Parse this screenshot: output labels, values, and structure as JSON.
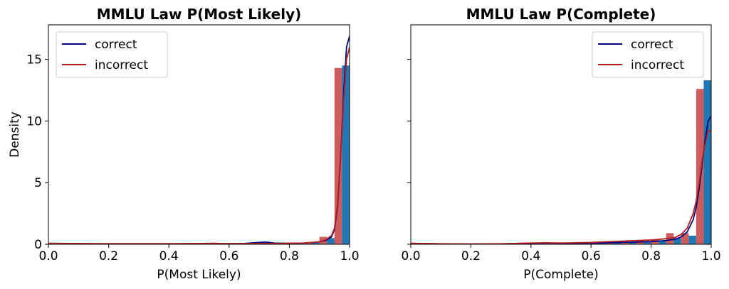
{
  "chart_data": [
    {
      "type": "bar",
      "title": "MMLU Law P(Most Likely)",
      "xlabel": "P(Most Likely)",
      "ylabel": "Density",
      "xlim": [
        0,
        1
      ],
      "ylim": [
        0,
        17.8
      ],
      "xticks": [
        "0.0",
        "0.2",
        "0.4",
        "0.6",
        "0.8",
        "1.0"
      ],
      "yticks": [
        "0",
        "5",
        "10",
        "15"
      ],
      "grid": false,
      "legend_position": "top-left",
      "bin_width": 0.05,
      "series": [
        {
          "name": "correct",
          "color": "#000080",
          "hist_color": "#1f77b4",
          "hist": [
            [
              0.05,
              0.05
            ],
            [
              0.1,
              0.03
            ],
            [
              0.15,
              0.03
            ],
            [
              0.2,
              0.03
            ],
            [
              0.25,
              0.03
            ],
            [
              0.3,
              0.03
            ],
            [
              0.35,
              0.03
            ],
            [
              0.4,
              0.03
            ],
            [
              0.45,
              0.03
            ],
            [
              0.5,
              0.03
            ],
            [
              0.55,
              0.04
            ],
            [
              0.6,
              0.04
            ],
            [
              0.65,
              0.05
            ],
            [
              0.7,
              0.1
            ],
            [
              0.75,
              0.1
            ],
            [
              0.8,
              0.08
            ],
            [
              0.85,
              0.1
            ],
            [
              0.9,
              0.2
            ],
            [
              0.95,
              0.5
            ],
            [
              1.0,
              14.5
            ]
          ],
          "kde": [
            [
              0,
              0.05
            ],
            [
              0.1,
              0.04
            ],
            [
              0.2,
              0.03
            ],
            [
              0.3,
              0.03
            ],
            [
              0.4,
              0.03
            ],
            [
              0.5,
              0.04
            ],
            [
              0.55,
              0.05
            ],
            [
              0.6,
              0.04
            ],
            [
              0.65,
              0.06
            ],
            [
              0.7,
              0.15
            ],
            [
              0.72,
              0.18
            ],
            [
              0.75,
              0.1
            ],
            [
              0.8,
              0.08
            ],
            [
              0.85,
              0.1
            ],
            [
              0.88,
              0.15
            ],
            [
              0.9,
              0.2
            ],
            [
              0.92,
              0.3
            ],
            [
              0.94,
              0.6
            ],
            [
              0.95,
              1.2
            ],
            [
              0.96,
              3
            ],
            [
              0.97,
              7
            ],
            [
              0.98,
              12
            ],
            [
              0.99,
              16
            ],
            [
              1.0,
              16.9
            ]
          ]
        },
        {
          "name": "incorrect",
          "color": "#b22222",
          "hist_color": "#cd5c5c",
          "hist": [
            [
              0.05,
              0.08
            ],
            [
              0.1,
              0.05
            ],
            [
              0.15,
              0.04
            ],
            [
              0.2,
              0.04
            ],
            [
              0.25,
              0.05
            ],
            [
              0.3,
              0.04
            ],
            [
              0.35,
              0.04
            ],
            [
              0.4,
              0.05
            ],
            [
              0.45,
              0.05
            ],
            [
              0.5,
              0.05
            ],
            [
              0.55,
              0.08
            ],
            [
              0.6,
              0.04
            ],
            [
              0.65,
              0.05
            ],
            [
              0.7,
              0.06
            ],
            [
              0.75,
              0.06
            ],
            [
              0.8,
              0.08
            ],
            [
              0.85,
              0.1
            ],
            [
              0.9,
              0.15
            ],
            [
              0.95,
              0.6
            ],
            [
              1.0,
              14.3
            ]
          ],
          "kde": [
            [
              0,
              0.08
            ],
            [
              0.1,
              0.06
            ],
            [
              0.2,
              0.05
            ],
            [
              0.3,
              0.05
            ],
            [
              0.4,
              0.05
            ],
            [
              0.5,
              0.06
            ],
            [
              0.55,
              0.08
            ],
            [
              0.6,
              0.05
            ],
            [
              0.7,
              0.06
            ],
            [
              0.8,
              0.08
            ],
            [
              0.85,
              0.1
            ],
            [
              0.9,
              0.2
            ],
            [
              0.92,
              0.35
            ],
            [
              0.94,
              0.7
            ],
            [
              0.95,
              1.3
            ],
            [
              0.96,
              3.2
            ],
            [
              0.97,
              7
            ],
            [
              0.98,
              11.5
            ],
            [
              0.99,
              15
            ],
            [
              1.0,
              16.0
            ]
          ]
        }
      ]
    },
    {
      "type": "bar",
      "title": "MMLU Law P(Complete)",
      "xlabel": "P(Complete)",
      "ylabel": "",
      "xlim": [
        0,
        1
      ],
      "ylim": [
        0,
        17.8
      ],
      "xticks": [
        "0.0",
        "0.2",
        "0.4",
        "0.6",
        "0.8",
        "1.0"
      ],
      "yticks": [],
      "grid": false,
      "legend_position": "top-right",
      "bin_width": 0.05,
      "series": [
        {
          "name": "correct",
          "color": "#000080",
          "hist_color": "#1f77b4",
          "hist": [
            [
              0.05,
              0.05
            ],
            [
              0.1,
              0.03
            ],
            [
              0.15,
              0.02
            ],
            [
              0.2,
              0.02
            ],
            [
              0.25,
              0.02
            ],
            [
              0.3,
              0.02
            ],
            [
              0.35,
              0.03
            ],
            [
              0.4,
              0.05
            ],
            [
              0.45,
              0.06
            ],
            [
              0.5,
              0.05
            ],
            [
              0.55,
              0.05
            ],
            [
              0.6,
              0.1
            ],
            [
              0.65,
              0.1
            ],
            [
              0.7,
              0.12
            ],
            [
              0.75,
              0.15
            ],
            [
              0.8,
              0.2
            ],
            [
              0.85,
              0.3
            ],
            [
              0.9,
              0.5
            ],
            [
              0.95,
              0.7
            ],
            [
              1.0,
              13.3
            ]
          ],
          "kde": [
            [
              0,
              0.05
            ],
            [
              0.05,
              0.04
            ],
            [
              0.1,
              0.03
            ],
            [
              0.2,
              0.02
            ],
            [
              0.3,
              0.03
            ],
            [
              0.4,
              0.08
            ],
            [
              0.45,
              0.1
            ],
            [
              0.5,
              0.07
            ],
            [
              0.55,
              0.08
            ],
            [
              0.6,
              0.1
            ],
            [
              0.65,
              0.12
            ],
            [
              0.7,
              0.15
            ],
            [
              0.75,
              0.18
            ],
            [
              0.8,
              0.22
            ],
            [
              0.85,
              0.3
            ],
            [
              0.88,
              0.4
            ],
            [
              0.9,
              0.6
            ],
            [
              0.92,
              1.0
            ],
            [
              0.94,
              2.0
            ],
            [
              0.95,
              3.0
            ],
            [
              0.96,
              4.5
            ],
            [
              0.97,
              6.5
            ],
            [
              0.98,
              8.5
            ],
            [
              0.99,
              10.0
            ],
            [
              1.0,
              10.4
            ]
          ]
        },
        {
          "name": "incorrect",
          "color": "#b22222",
          "hist_color": "#cd5c5c",
          "hist": [
            [
              0.05,
              0.1
            ],
            [
              0.1,
              0.05
            ],
            [
              0.15,
              0.03
            ],
            [
              0.2,
              0.03
            ],
            [
              0.25,
              0.03
            ],
            [
              0.3,
              0.04
            ],
            [
              0.35,
              0.05
            ],
            [
              0.4,
              0.08
            ],
            [
              0.45,
              0.1
            ],
            [
              0.5,
              0.08
            ],
            [
              0.55,
              0.1
            ],
            [
              0.6,
              0.15
            ],
            [
              0.65,
              0.2
            ],
            [
              0.7,
              0.2
            ],
            [
              0.75,
              0.25
            ],
            [
              0.8,
              0.3
            ],
            [
              0.85,
              0.35
            ],
            [
              0.9,
              0.9
            ],
            [
              0.95,
              0.9
            ],
            [
              1.0,
              12.6
            ]
          ],
          "kde": [
            [
              0,
              0.08
            ],
            [
              0.05,
              0.06
            ],
            [
              0.1,
              0.04
            ],
            [
              0.2,
              0.03
            ],
            [
              0.3,
              0.04
            ],
            [
              0.4,
              0.1
            ],
            [
              0.45,
              0.12
            ],
            [
              0.5,
              0.1
            ],
            [
              0.55,
              0.12
            ],
            [
              0.6,
              0.15
            ],
            [
              0.65,
              0.2
            ],
            [
              0.7,
              0.25
            ],
            [
              0.75,
              0.3
            ],
            [
              0.8,
              0.35
            ],
            [
              0.85,
              0.45
            ],
            [
              0.88,
              0.55
            ],
            [
              0.9,
              0.8
            ],
            [
              0.92,
              1.3
            ],
            [
              0.94,
              2.5
            ],
            [
              0.95,
              3.5
            ],
            [
              0.96,
              5.0
            ],
            [
              0.97,
              6.8
            ],
            [
              0.98,
              8.2
            ],
            [
              0.99,
              9.2
            ],
            [
              1.0,
              9.2
            ]
          ]
        }
      ]
    }
  ]
}
